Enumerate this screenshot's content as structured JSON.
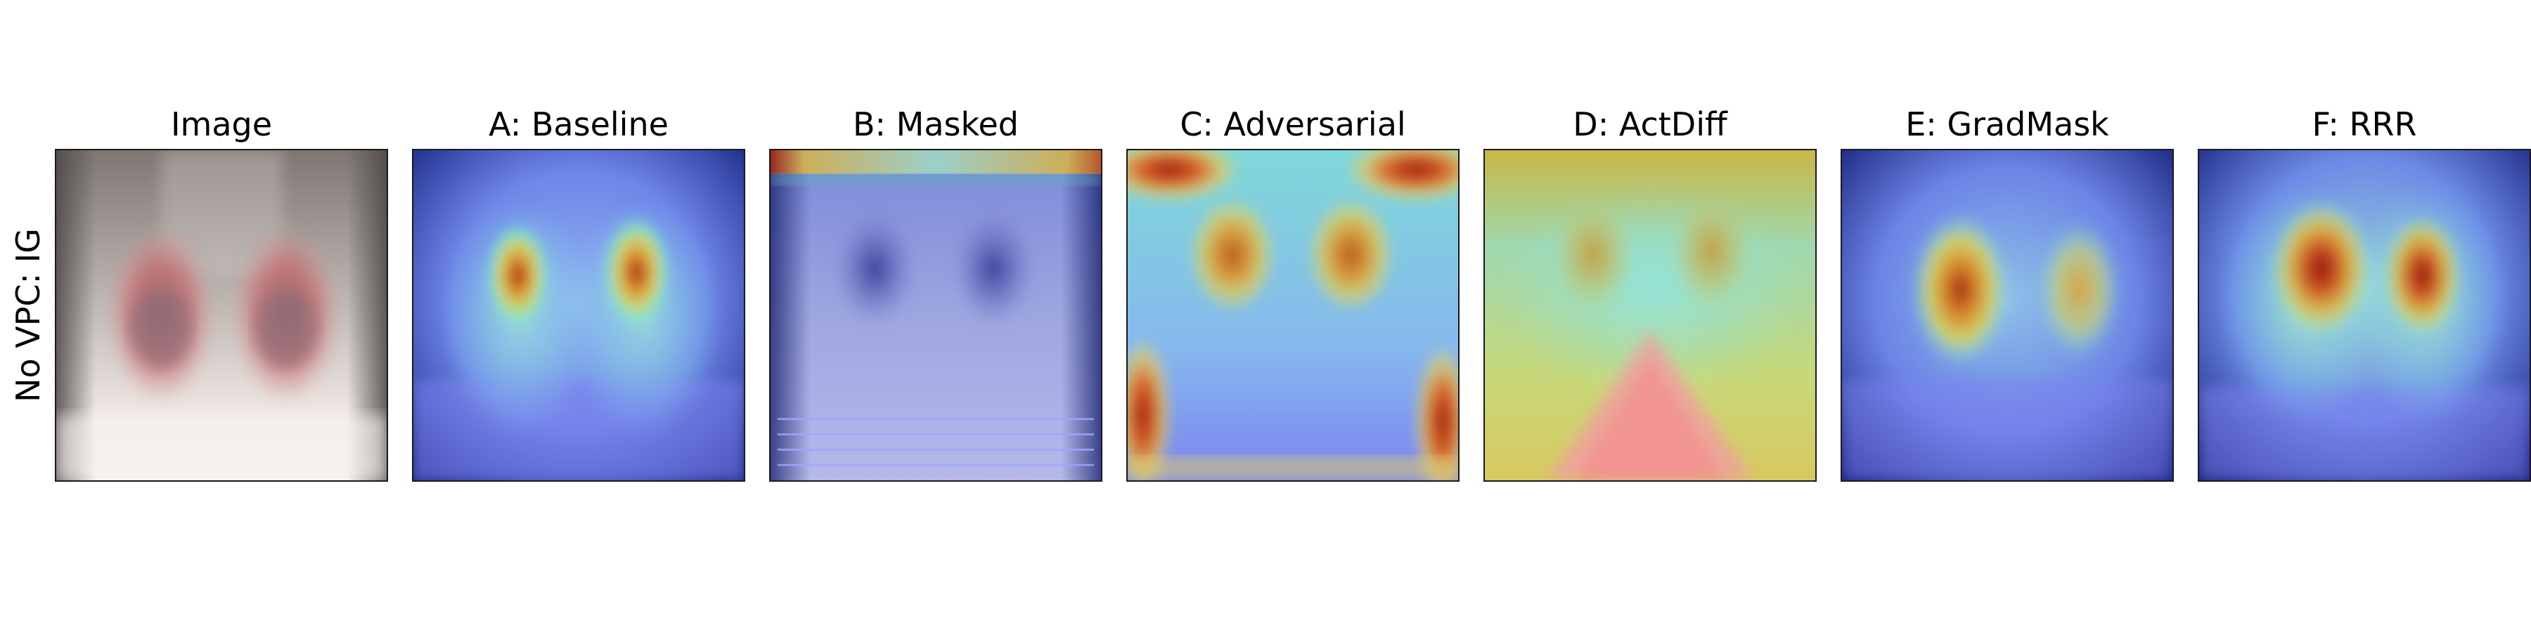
{
  "row_label": "No VPC: IG",
  "panels": [
    {
      "title": "Image",
      "kind": "image"
    },
    {
      "title": "A: Baseline",
      "kind": "heatmap"
    },
    {
      "title": "B: Masked",
      "kind": "heatmap"
    },
    {
      "title": "C: Adversarial",
      "kind": "heatmap"
    },
    {
      "title": "D: ActDiff",
      "kind": "heatmap"
    },
    {
      "title": "E: GradMask",
      "kind": "heatmap"
    },
    {
      "title": "F: RRR",
      "kind": "heatmap"
    }
  ],
  "colors": {
    "frame": "#1a1a1a",
    "cold": "#5a63e0",
    "dark_blue": "#0d1570",
    "cyan": "#7ee8e8",
    "yellow": "#e3d46a",
    "orange": "#d98a2a",
    "red": "#9c1a14"
  }
}
